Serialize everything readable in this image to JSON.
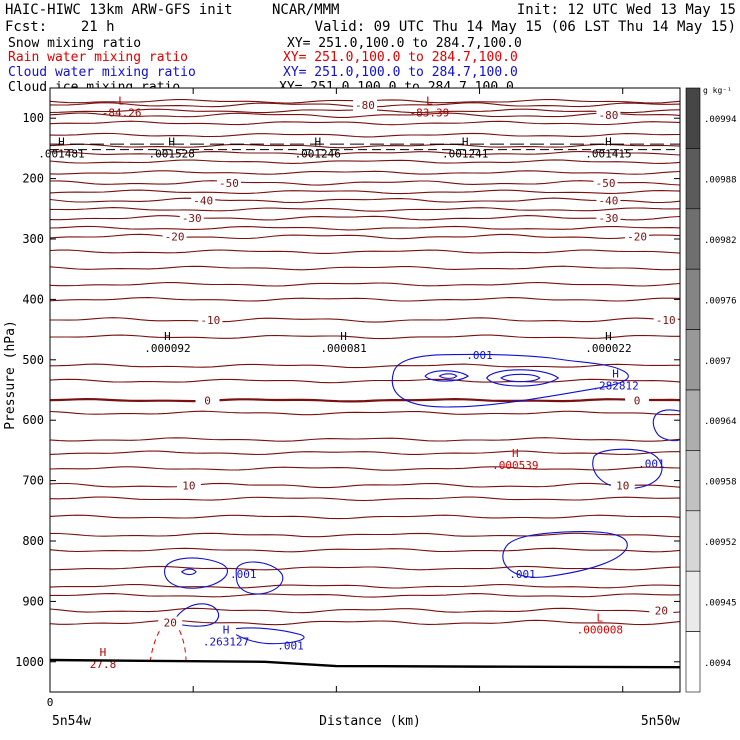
{
  "header": {
    "model": "HAIC-HIWC 13km ARW-GFS init",
    "center": "NCAR/MMM",
    "init": "Init: 12 UTC Wed 13 May 15",
    "fcst": "Fcst:    21 h",
    "valid": "Valid: 09 UTC Thu 14 May 15 (06 LST Thu 14 May 15)",
    "fields": [
      {
        "label": "Snow mixing ratio",
        "xy": "XY= 251.0,100.0 to 284.7,100.0",
        "color": "#000000"
      },
      {
        "label": "Rain water mixing ratio",
        "xy": "XY= 251.0,100.0 to 284.7,100.0",
        "color": "#e00000"
      },
      {
        "label": "Cloud water mixing ratio",
        "xy": "XY= 251.0,100.0 to 284.7,100.0",
        "color": "#1010d0"
      },
      {
        "label": "Cloud ice mixing ratio",
        "xy": "XY= 251.0,100.0 to 284.7,100.0",
        "color": "#000000"
      }
    ]
  },
  "chart_data": {
    "type": "contour",
    "xlabel": "Distance (km)",
    "ylabel": "Pressure (hPa)",
    "x_left_label": "5n54w",
    "x_right_label": "5n50w",
    "xticks": [
      {
        "value": 0,
        "label": "0"
      },
      {
        "value": 1,
        "label": ""
      },
      {
        "value": 2,
        "label": ""
      },
      {
        "value": 3,
        "label": ""
      },
      {
        "value": 4,
        "label": ""
      }
    ],
    "xlim": [
      0,
      4.4
    ],
    "ylim": [
      1050,
      50
    ],
    "yticks": [
      100,
      200,
      300,
      400,
      500,
      600,
      700,
      800,
      900,
      1000
    ],
    "temperature_contours": [
      {
        "label": "-80",
        "p": 78,
        "lx": 2.2
      },
      {
        "label": "-80",
        "p": 95,
        "lx": 3.9
      },
      {
        "label": "-50",
        "p": 207,
        "lx": 1.25
      },
      {
        "label": "-50",
        "p": 207,
        "lx": 3.88
      },
      {
        "label": "-40",
        "p": 236,
        "lx": 1.07
      },
      {
        "label": "-40",
        "p": 236,
        "lx": 3.9
      },
      {
        "label": "-30",
        "p": 265,
        "lx": 0.99
      },
      {
        "label": "-30",
        "p": 265,
        "lx": 3.9
      },
      {
        "label": "-20",
        "p": 296,
        "lx": 0.87
      },
      {
        "label": "-20",
        "p": 296,
        "lx": 4.1
      },
      {
        "label": "-10",
        "p": 434,
        "lx": 1.12
      },
      {
        "label": "-10",
        "p": 434,
        "lx": 4.3
      },
      {
        "label": "0",
        "p": 567,
        "lx": 1.1
      },
      {
        "label": "0",
        "p": 567,
        "lx": 4.1
      },
      {
        "label": "10",
        "p": 708,
        "lx": 0.97
      },
      {
        "label": "10",
        "p": 708,
        "lx": 4.0
      },
      {
        "label": "20",
        "p": 915,
        "lx": 4.27
      },
      {
        "label": "20",
        "p": 935,
        "lx": 0.84
      }
    ],
    "unlabeled_temperature_levels": [
      72,
      88,
      108,
      128,
      146,
      158,
      172,
      190,
      222,
      251,
      282,
      321,
      348,
      375,
      400,
      462,
      510,
      535,
      588,
      632,
      654,
      680,
      730,
      760,
      790,
      815,
      845,
      875,
      890
    ],
    "extrema": [
      {
        "type": "L",
        "value": "-84.26",
        "x": 0.5,
        "p": 82,
        "color": "#b00000"
      },
      {
        "type": "L",
        "value": "-83.39",
        "x": 2.65,
        "p": 82,
        "color": "#b00000"
      },
      {
        "type": "H",
        "value": ".001481",
        "x": 0.08,
        "p": 150,
        "color": "#000000"
      },
      {
        "type": "H",
        "value": ".001528",
        "x": 0.85,
        "p": 150,
        "color": "#000000"
      },
      {
        "type": "H",
        "value": ".001246",
        "x": 1.87,
        "p": 150,
        "color": "#000000"
      },
      {
        "type": "H",
        "value": ".001241",
        "x": 2.9,
        "p": 150,
        "color": "#000000"
      },
      {
        "type": "H",
        "value": ".001415",
        "x": 3.9,
        "p": 150,
        "color": "#000000"
      },
      {
        "type": "H",
        "value": ".000092",
        "x": 0.82,
        "p": 472,
        "color": "#000000"
      },
      {
        "type": "H",
        "value": ".000081",
        "x": 2.05,
        "p": 472,
        "color": "#000000"
      },
      {
        "type": "H",
        "value": ".000022",
        "x": 3.9,
        "p": 472,
        "color": "#000000"
      },
      {
        "type": "H",
        "value": ".282812",
        "x": 3.95,
        "p": 534,
        "color": "#1010d0"
      },
      {
        "type": "H",
        "value": ".000539",
        "x": 3.25,
        "p": 666,
        "color": "#e00000"
      },
      {
        "type": "L",
        "value": ".000008",
        "x": 3.84,
        "p": 938,
        "color": "#e00000"
      },
      {
        "type": "H",
        "value": ".263127",
        "x": 1.23,
        "p": 958,
        "color": "#1010d0"
      },
      {
        "type": "H",
        "value": "27.8",
        "x": 0.37,
        "p": 995,
        "color": "#b00000"
      }
    ],
    "cloud_water_labels": [
      {
        "label": ".001",
        "x": 3.0,
        "p": 492
      },
      {
        "label": ".001",
        "x": 4.2,
        "p": 672
      },
      {
        "label": ".001",
        "x": 3.3,
        "p": 855
      },
      {
        "label": ".001",
        "x": 1.35,
        "p": 855
      },
      {
        "label": ".001",
        "x": 1.68,
        "p": 973
      }
    ],
    "colorbar": {
      "unit": "g kg⁻¹",
      "labels": [
        ".00994",
        ".00988",
        ".00982",
        ".00976",
        ".0097",
        ".00964",
        ".00958",
        ".00952",
        ".00945",
        ".0094"
      ]
    }
  }
}
